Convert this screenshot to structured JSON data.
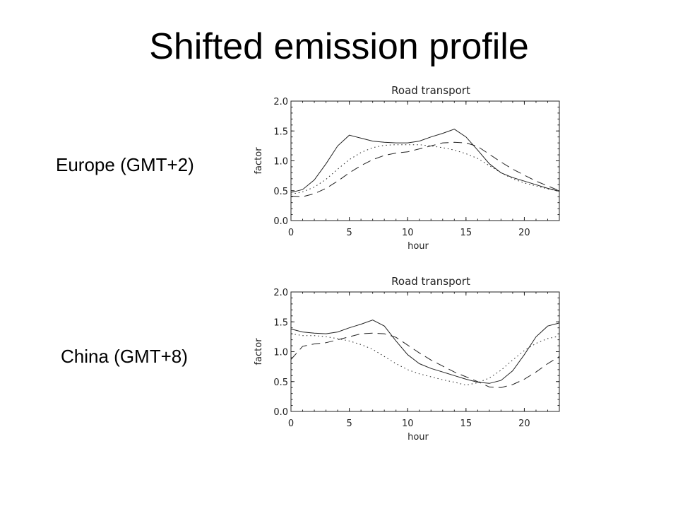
{
  "slide": {
    "title": "Shifted emission profile",
    "labels": [
      "Europe (GMT+2)",
      "China (GMT+8)"
    ]
  },
  "chart_data": [
    {
      "type": "line",
      "title": "Road transport",
      "xlabel": "hour",
      "ylabel": "factor",
      "xlim": [
        0,
        23
      ],
      "ylim": [
        0.0,
        2.0
      ],
      "xticks": [
        "0",
        "5",
        "10",
        "15",
        "20"
      ],
      "yticks": [
        "0.0",
        "0.5",
        "1.0",
        "1.5",
        "2.0"
      ],
      "grid": false,
      "legend": "none",
      "x": [
        0,
        1,
        2,
        3,
        4,
        5,
        6,
        7,
        8,
        9,
        10,
        11,
        12,
        13,
        14,
        15,
        16,
        17,
        18,
        19,
        20,
        21,
        22,
        23
      ],
      "series": [
        {
          "style": "solid",
          "values": [
            0.47,
            0.52,
            0.68,
            0.95,
            1.25,
            1.43,
            1.38,
            1.33,
            1.31,
            1.3,
            1.3,
            1.33,
            1.4,
            1.46,
            1.53,
            1.4,
            1.18,
            0.95,
            0.8,
            0.72,
            0.66,
            0.6,
            0.54,
            0.49
          ]
        },
        {
          "style": "dotted",
          "values": [
            0.44,
            0.48,
            0.56,
            0.69,
            0.86,
            1.02,
            1.14,
            1.22,
            1.26,
            1.27,
            1.27,
            1.27,
            1.25,
            1.22,
            1.18,
            1.12,
            1.04,
            0.92,
            0.8,
            0.7,
            0.63,
            0.58,
            0.53,
            0.49
          ]
        },
        {
          "style": "dashed",
          "values": [
            0.41,
            0.4,
            0.45,
            0.54,
            0.66,
            0.8,
            0.92,
            1.02,
            1.09,
            1.13,
            1.15,
            1.2,
            1.25,
            1.3,
            1.31,
            1.3,
            1.24,
            1.11,
            0.98,
            0.86,
            0.76,
            0.66,
            0.58,
            0.5
          ]
        }
      ]
    },
    {
      "type": "line",
      "title": "Road transport",
      "xlabel": "hour",
      "ylabel": "factor",
      "xlim": [
        0,
        23
      ],
      "ylim": [
        0.0,
        2.0
      ],
      "xticks": [
        "0",
        "5",
        "10",
        "15",
        "20"
      ],
      "yticks": [
        "0.0",
        "0.5",
        "1.0",
        "1.5",
        "2.0"
      ],
      "grid": false,
      "legend": "none",
      "x": [
        0,
        1,
        2,
        3,
        4,
        5,
        6,
        7,
        8,
        9,
        10,
        11,
        12,
        13,
        14,
        15,
        16,
        17,
        18,
        19,
        20,
        21,
        22,
        23
      ],
      "series": [
        {
          "style": "solid",
          "values": [
            1.38,
            1.33,
            1.31,
            1.3,
            1.33,
            1.4,
            1.46,
            1.53,
            1.43,
            1.18,
            0.95,
            0.8,
            0.72,
            0.66,
            0.6,
            0.54,
            0.49,
            0.47,
            0.52,
            0.68,
            0.95,
            1.25,
            1.43,
            1.48
          ]
        },
        {
          "style": "dotted",
          "values": [
            1.3,
            1.27,
            1.27,
            1.25,
            1.22,
            1.18,
            1.12,
            1.04,
            0.92,
            0.8,
            0.7,
            0.63,
            0.58,
            0.53,
            0.49,
            0.44,
            0.48,
            0.56,
            0.69,
            0.86,
            1.02,
            1.14,
            1.22,
            1.26
          ]
        },
        {
          "style": "dashed",
          "values": [
            0.87,
            1.09,
            1.13,
            1.15,
            1.2,
            1.25,
            1.3,
            1.31,
            1.3,
            1.24,
            1.11,
            0.98,
            0.86,
            0.76,
            0.66,
            0.58,
            0.5,
            0.41,
            0.4,
            0.45,
            0.54,
            0.66,
            0.8,
            0.92
          ]
        }
      ]
    }
  ]
}
